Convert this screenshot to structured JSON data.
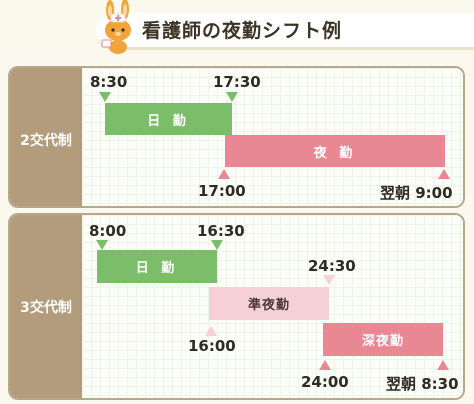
{
  "title": "看護師の夜勤シフト例",
  "colors": {
    "day": "#7cbd6a",
    "night": "#e98893",
    "semi_night": "#f5d0d6",
    "side": "#b29c7c"
  },
  "mascot_icon": "rabbit-nurse-icon",
  "two_shift": {
    "label": "2交代制",
    "day": {
      "label": "日 勤",
      "start": "8:30",
      "end": "17:30"
    },
    "night": {
      "label": "夜 勤",
      "start": "17:00",
      "end": "翌朝 9:00"
    }
  },
  "three_shift": {
    "label": "3交代制",
    "day": {
      "label": "日 勤",
      "start": "8:00",
      "end": "16:30"
    },
    "semi_night": {
      "label": "準夜勤",
      "start": "16:00",
      "end": "24:30"
    },
    "deep_night": {
      "label": "深夜勤",
      "start": "24:00",
      "end": "翌朝 8:30"
    }
  }
}
